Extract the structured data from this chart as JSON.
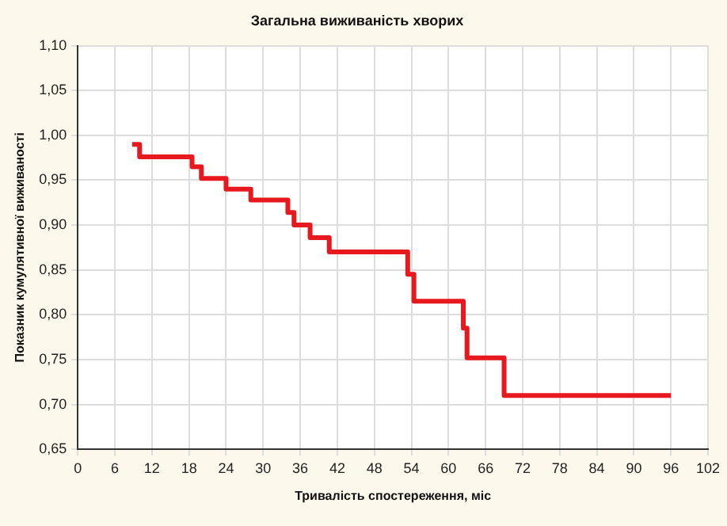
{
  "chart_data": {
    "type": "step",
    "title": "Загальна виживаність хворих",
    "xlabel": "Тривалість спостереження, міс",
    "ylabel": "Показник кумулятивної виживаності",
    "x": [
      8.8,
      10,
      18.5,
      20,
      24,
      28,
      34,
      35,
      37.6,
      40.7,
      53.4,
      54.4,
      62.4,
      63,
      69,
      96
    ],
    "series": [
      {
        "color": "#e8191e",
        "values": [
          0.99,
          0.976,
          0.965,
          0.952,
          0.94,
          0.928,
          0.914,
          0.9,
          0.886,
          0.87,
          0.845,
          0.815,
          0.785,
          0.752,
          0.71,
          0.71
        ]
      }
    ],
    "xlim": [
      0,
      102
    ],
    "xticks": [
      0,
      6,
      12,
      18,
      24,
      30,
      36,
      42,
      48,
      54,
      60,
      66,
      72,
      78,
      84,
      90,
      96,
      102
    ],
    "ylim": [
      0.65,
      1.1
    ],
    "yticks": [
      {
        "value": 0.65,
        "label": "0,65"
      },
      {
        "value": 0.7,
        "label": "0,70"
      },
      {
        "value": 0.75,
        "label": "0,75"
      },
      {
        "value": 0.8,
        "label": "0,80"
      },
      {
        "value": 0.85,
        "label": "0,85"
      },
      {
        "value": 0.9,
        "label": "0,90"
      },
      {
        "value": 0.95,
        "label": "0,95"
      },
      {
        "value": 1.0,
        "label": "1,00"
      },
      {
        "value": 1.05,
        "label": "1,05"
      },
      {
        "value": 1.1,
        "label": "1,10"
      }
    ],
    "grid": true,
    "legend": false,
    "marker": "none",
    "line_style": "solid"
  }
}
